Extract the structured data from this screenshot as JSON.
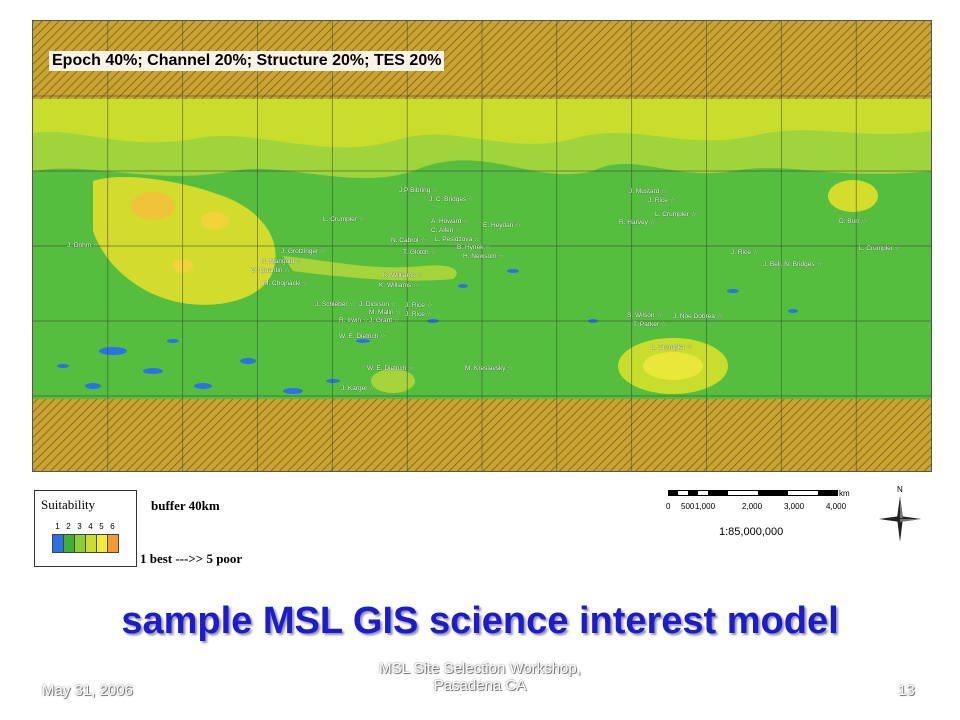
{
  "map": {
    "title": "Epoch 40%;  Channel 20%; Structure 20%; TES 20%",
    "sites": [
      {
        "label": "J.P Bibring"
      },
      {
        "label": "J. C. Bridges"
      },
      {
        "label": "J. Mustard"
      },
      {
        "label": "J. Rice"
      },
      {
        "label": "L. Crumpler"
      },
      {
        "label": "A. Howard"
      },
      {
        "label": "C. Allen"
      },
      {
        "label": "E. Heydari"
      },
      {
        "label": "L. Pesidzova"
      },
      {
        "label": "L. Crumpler"
      },
      {
        "label": "R. Harvey"
      },
      {
        "label": "D. Burr"
      },
      {
        "label": "J. Dohm"
      },
      {
        "label": "N. Cabrol"
      },
      {
        "label": "B. Hynek"
      },
      {
        "label": "T. Glotch"
      },
      {
        "label": "H. Newsom"
      },
      {
        "label": "J. Grotzinger"
      },
      {
        "label": "N. Mangold"
      },
      {
        "label": "G. Quantin"
      },
      {
        "label": "M. Chojnacki"
      },
      {
        "label": "J. Rice"
      },
      {
        "label": "J. Bell, N. Bridges"
      },
      {
        "label": "L. Crumpler"
      },
      {
        "label": "K. Williams"
      },
      {
        "label": "K. Williams"
      },
      {
        "label": "J. Schieber"
      },
      {
        "label": "J. Dickson"
      },
      {
        "label": "J. Rice"
      },
      {
        "label": "M. Malin"
      },
      {
        "label": "J. Rice"
      },
      {
        "label": "R. Irwin"
      },
      {
        "label": "J. Grant"
      },
      {
        "label": "S. Wilson"
      },
      {
        "label": "J. Noe Dobrea"
      },
      {
        "label": "T. Parker"
      },
      {
        "label": "W. E. Dietrich"
      },
      {
        "label": "L. Crumpler"
      },
      {
        "label": "W. E. Dietrich"
      },
      {
        "label": "M. Kreslavsky"
      },
      {
        "label": "J. Kargel"
      }
    ]
  },
  "legend": {
    "title": "Suitability",
    "numbers": [
      "1",
      "2",
      "3",
      "4",
      "5",
      "6"
    ],
    "colors": [
      "#2b72e8",
      "#3fb035",
      "#8ccf30",
      "#c9de2c",
      "#f1ec3a",
      "#f29a33"
    ],
    "buffer": "buffer 40km",
    "range": "1 best --->> 5 poor"
  },
  "scale": {
    "unit": "km",
    "ticks": [
      "0",
      "500",
      "1,000",
      "2,000",
      "3,000",
      "4,000"
    ],
    "ratio": "1:85,000,000",
    "north": "N"
  },
  "slide": {
    "title": "sample MSL GIS science interest model",
    "date": "May 31, 2006",
    "event_line1": "MSL Site Selection Workshop,",
    "event_line2": "Pasadena CA",
    "page": "13"
  }
}
